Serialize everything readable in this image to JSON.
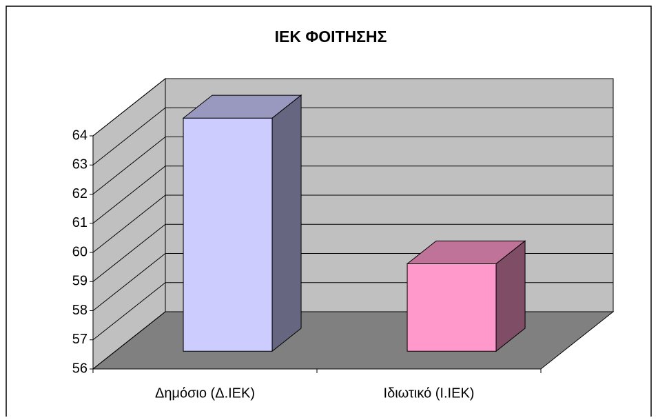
{
  "chart_data": {
    "type": "bar3d",
    "title": "ΙΕΚ ΦΟΙΤΗΣΗΣ",
    "categories": [
      "Δημόσιο (Δ.ΙΕΚ)",
      "Ιδιωτικό (Ι.ΙΕΚ)"
    ],
    "values": [
      64,
      59
    ],
    "colors": [
      "#ccccff",
      "#ff99cc"
    ],
    "ylim": [
      56,
      64
    ],
    "yticks": [
      56,
      57,
      58,
      59,
      60,
      61,
      62,
      63,
      64
    ],
    "grid": true
  }
}
